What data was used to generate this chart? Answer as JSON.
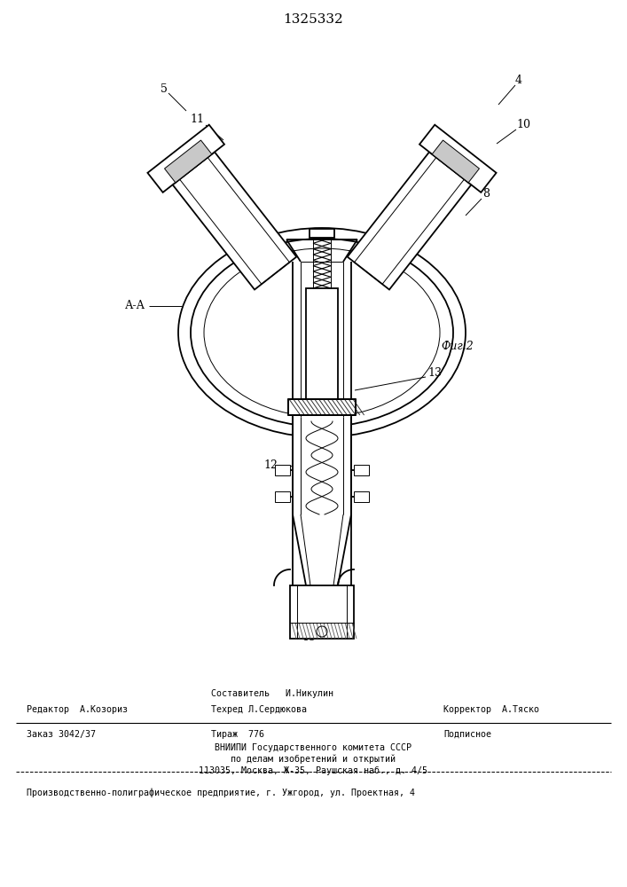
{
  "title": "1325332",
  "fig_label": "Фиг.2",
  "aa_label": "А-А",
  "bg_color": "#ffffff",
  "line_color": "#000000",
  "footer": {
    "sestavitel_top": "Составитель   И.Никулин",
    "redaktor": "Редактор  А.Козориз",
    "tehred": "Техред Л.Сердюкова",
    "korrektor": "Корректор  А.Тяско",
    "zakaz": "Заказ 3042/37",
    "tirazh": "Тираж  776",
    "podpisnoe": "Подписное",
    "vniip1": "ВНИИПИ Государственного комитета СССР",
    "vniip2": "по делам изобретений и открытий",
    "vniip3": "113035, Москва, Ж-35, Раушская наб., д. 4/5",
    "proizv": "Производственно-полиграфическое предприятие, г. Ужгород, ул. Проектная, 4"
  }
}
